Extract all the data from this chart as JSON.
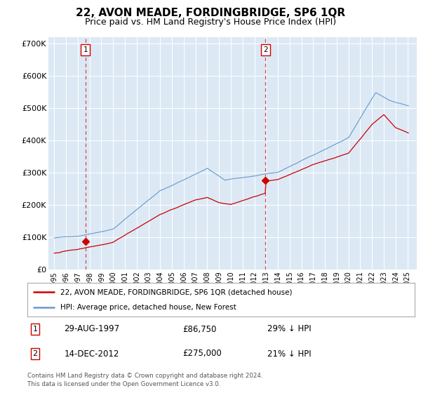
{
  "title": "22, AVON MEADE, FORDINGBRIDGE, SP6 1QR",
  "subtitle": "Price paid vs. HM Land Registry's House Price Index (HPI)",
  "legend_label_red": "22, AVON MEADE, FORDINGBRIDGE, SP6 1QR (detached house)",
  "legend_label_blue": "HPI: Average price, detached house, New Forest",
  "footer": "Contains HM Land Registry data © Crown copyright and database right 2024.\nThis data is licensed under the Open Government Licence v3.0.",
  "sale1_date": "29-AUG-1997",
  "sale1_price": "£86,750",
  "sale1_hpi": "29% ↓ HPI",
  "sale1_year": 1997.65,
  "sale1_value": 86750,
  "sale2_date": "14-DEC-2012",
  "sale2_price": "£275,000",
  "sale2_hpi": "21% ↓ HPI",
  "sale2_year": 2012.95,
  "sale2_value": 275000,
  "ylim": [
    0,
    720000
  ],
  "yticks": [
    0,
    100000,
    200000,
    300000,
    400000,
    500000,
    600000,
    700000
  ],
  "ytick_labels": [
    "£0",
    "£100K",
    "£200K",
    "£300K",
    "£400K",
    "£500K",
    "£600K",
    "£700K"
  ],
  "plot_bg": "#dce9f5",
  "red_color": "#cc0000",
  "blue_color": "#6699cc",
  "grid_color": "#ffffff",
  "title_fontsize": 11,
  "subtitle_fontsize": 9
}
